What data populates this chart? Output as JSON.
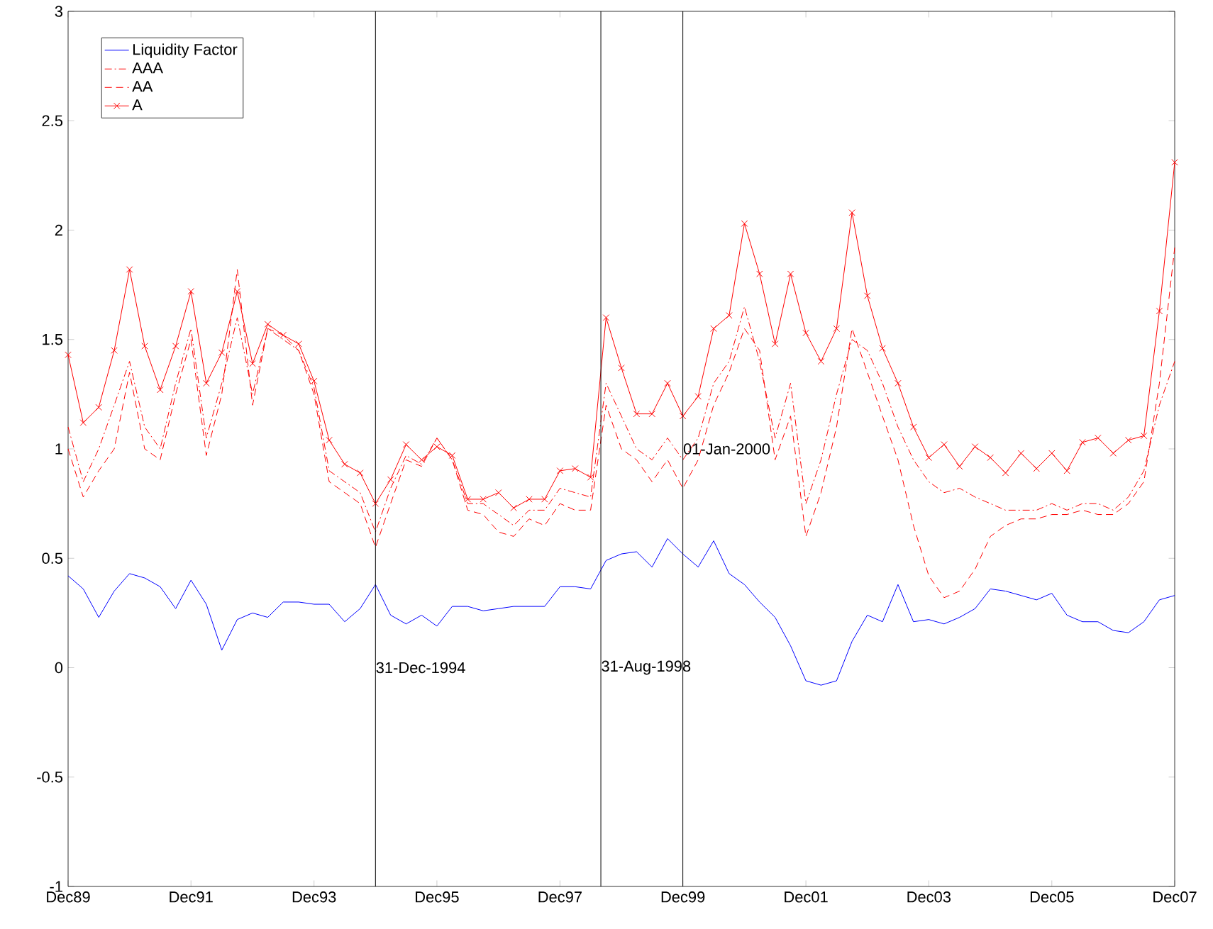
{
  "chart_data": {
    "type": "line",
    "x": [
      "1989-12",
      "1990-03",
      "1990-06",
      "1990-09",
      "1990-12",
      "1991-03",
      "1991-06",
      "1991-09",
      "1991-12",
      "1992-03",
      "1992-06",
      "1992-09",
      "1992-12",
      "1993-03",
      "1993-06",
      "1993-09",
      "1993-12",
      "1994-03",
      "1994-06",
      "1994-09",
      "1994-12",
      "1995-03",
      "1995-06",
      "1995-09",
      "1995-12",
      "1996-03",
      "1996-06",
      "1996-09",
      "1996-12",
      "1997-03",
      "1997-06",
      "1997-09",
      "1997-12",
      "1998-03",
      "1998-06",
      "1998-09",
      "1998-12",
      "1999-03",
      "1999-06",
      "1999-09",
      "1999-12",
      "2000-03",
      "2000-06",
      "2000-09",
      "2000-12",
      "2001-03",
      "2001-06",
      "2001-09",
      "2001-12",
      "2002-03",
      "2002-06",
      "2002-09",
      "2002-12",
      "2003-03",
      "2003-06",
      "2003-09",
      "2003-12",
      "2004-03",
      "2004-06",
      "2004-09",
      "2004-12",
      "2005-03",
      "2005-06",
      "2005-09",
      "2005-12",
      "2006-03",
      "2006-06",
      "2006-09",
      "2006-12",
      "2007-03",
      "2007-06",
      "2007-09",
      "2007-12"
    ],
    "series": [
      {
        "name": "Liquidity Factor",
        "color": "#0000ff",
        "line_style": "solid",
        "marker": "none",
        "values": [
          0.42,
          0.36,
          0.23,
          0.35,
          0.43,
          0.41,
          0.37,
          0.27,
          0.4,
          0.29,
          0.08,
          0.22,
          0.25,
          0.23,
          0.3,
          0.3,
          0.29,
          0.29,
          0.21,
          0.27,
          0.38,
          0.24,
          0.2,
          0.24,
          0.19,
          0.28,
          0.28,
          0.26,
          0.27,
          0.28,
          0.28,
          0.28,
          0.37,
          0.37,
          0.36,
          0.49,
          0.52,
          0.53,
          0.46,
          0.59,
          0.52,
          0.46,
          0.58,
          0.43,
          0.38,
          0.3,
          0.23,
          0.1,
          -0.06,
          -0.08,
          -0.06,
          0.12,
          0.24,
          0.21,
          0.38,
          0.21,
          0.22,
          0.2,
          0.23,
          0.27,
          0.36,
          0.35,
          0.33,
          0.31,
          0.34,
          0.24,
          0.21,
          0.21,
          0.17,
          0.16,
          0.21,
          0.31,
          0.33
        ]
      },
      {
        "name": "AAA",
        "color": "#ff0000",
        "line_style": "dashdot",
        "marker": "none",
        "values": [
          1.1,
          0.85,
          1.0,
          1.2,
          1.4,
          1.1,
          1.0,
          1.3,
          1.55,
          1.05,
          1.3,
          1.6,
          1.25,
          1.55,
          1.5,
          1.45,
          1.28,
          0.9,
          0.85,
          0.8,
          0.62,
          0.82,
          0.97,
          0.93,
          1.05,
          0.95,
          0.75,
          0.75,
          0.7,
          0.65,
          0.72,
          0.72,
          0.82,
          0.8,
          0.78,
          1.3,
          1.15,
          1.0,
          0.95,
          1.05,
          0.95,
          1.05,
          1.3,
          1.4,
          1.65,
          1.4,
          1.05,
          1.3,
          0.75,
          0.95,
          1.25,
          1.5,
          1.45,
          1.3,
          1.1,
          0.95,
          0.85,
          0.8,
          0.82,
          0.78,
          0.75,
          0.72,
          0.72,
          0.72,
          0.75,
          0.72,
          0.75,
          0.75,
          0.72,
          0.78,
          0.9,
          1.2,
          1.4
        ]
      },
      {
        "name": "AA",
        "color": "#ff0000",
        "line_style": "dashed",
        "marker": "none",
        "values": [
          1.0,
          0.78,
          0.9,
          1.0,
          1.35,
          1.0,
          0.95,
          1.25,
          1.5,
          0.97,
          1.25,
          1.82,
          1.2,
          1.55,
          1.52,
          1.45,
          1.25,
          0.85,
          0.8,
          0.75,
          0.55,
          0.75,
          0.95,
          0.92,
          1.05,
          0.95,
          0.72,
          0.7,
          0.62,
          0.6,
          0.68,
          0.65,
          0.75,
          0.72,
          0.72,
          1.2,
          1.0,
          0.95,
          0.85,
          0.95,
          0.82,
          0.95,
          1.2,
          1.35,
          1.55,
          1.45,
          0.95,
          1.15,
          0.6,
          0.8,
          1.1,
          1.55,
          1.35,
          1.15,
          0.95,
          0.65,
          0.42,
          0.32,
          0.35,
          0.45,
          0.6,
          0.65,
          0.68,
          0.68,
          0.7,
          0.7,
          0.72,
          0.7,
          0.7,
          0.75,
          0.85,
          1.3,
          1.92
        ]
      },
      {
        "name": "A",
        "color": "#ff0000",
        "line_style": "solid",
        "marker": "cross",
        "values": [
          1.43,
          1.12,
          1.19,
          1.45,
          1.82,
          1.47,
          1.27,
          1.47,
          1.72,
          1.3,
          1.44,
          1.72,
          1.39,
          1.57,
          1.52,
          1.48,
          1.31,
          1.04,
          0.93,
          0.89,
          0.75,
          0.86,
          1.02,
          0.95,
          1.01,
          0.97,
          0.77,
          0.77,
          0.8,
          0.73,
          0.77,
          0.77,
          0.9,
          0.91,
          0.87,
          1.6,
          1.37,
          1.16,
          1.16,
          1.3,
          1.15,
          1.24,
          1.55,
          1.61,
          2.03,
          1.8,
          1.48,
          1.8,
          1.53,
          1.4,
          1.55,
          2.08,
          1.7,
          1.46,
          1.3,
          1.1,
          0.96,
          1.02,
          0.92,
          1.01,
          0.96,
          0.89,
          0.98,
          0.91,
          0.98,
          0.9,
          1.03,
          1.05,
          0.98,
          1.04,
          1.06,
          1.63,
          2.31
        ]
      }
    ],
    "xlim": [
      "1989-12",
      "2007-12"
    ],
    "xticks": [
      {
        "value": "1989-12",
        "label": "Dec89"
      },
      {
        "value": "1991-12",
        "label": "Dec91"
      },
      {
        "value": "1993-12",
        "label": "Dec93"
      },
      {
        "value": "1995-12",
        "label": "Dec95"
      },
      {
        "value": "1997-12",
        "label": "Dec97"
      },
      {
        "value": "1999-12",
        "label": "Dec99"
      },
      {
        "value": "2001-12",
        "label": "Dec01"
      },
      {
        "value": "2003-12",
        "label": "Dec03"
      },
      {
        "value": "2005-12",
        "label": "Dec05"
      },
      {
        "value": "2007-12",
        "label": "Dec07"
      }
    ],
    "ylim": [
      -1,
      3
    ],
    "yticks": [
      -1,
      -0.5,
      0,
      0.5,
      1,
      1.5,
      2,
      2.5,
      3
    ],
    "ref_lines": [
      {
        "axis": "x",
        "value": "1994-12",
        "label": "31-Dec-1994",
        "color": "#000000"
      },
      {
        "axis": "x",
        "value": "1998-08",
        "label": "31-Aug-1998",
        "color": "#000000"
      },
      {
        "axis": "x",
        "value": "1999-12",
        "label": "01-Jan-2000",
        "color": "#000000"
      }
    ],
    "legend": "top left"
  }
}
